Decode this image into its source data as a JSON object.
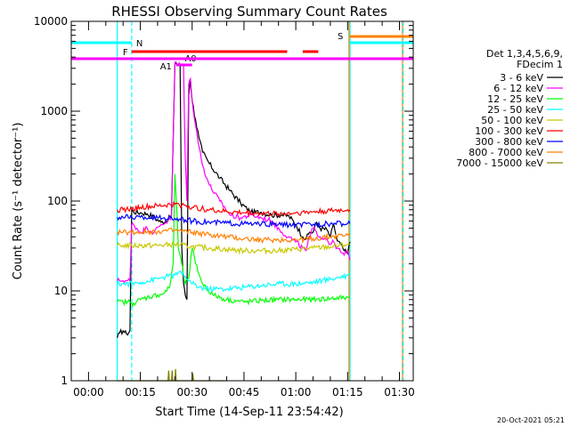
{
  "chart_data": {
    "type": "line",
    "title": "RHESSI Observing Summary Count Rates",
    "xlabel": "Start Time (14-Sep-11 23:54:42)",
    "ylabel": "Count Rate (s⁻¹ detector⁻¹)",
    "footer": "20-Oct-2021 05:21",
    "x_unit": "minutes after start",
    "xlim": [
      -5,
      94
    ],
    "ylim": [
      1,
      10000
    ],
    "yscale": "log",
    "x_ticks": [
      {
        "t": 0,
        "label": "00:00"
      },
      {
        "t": 15,
        "label": "00:15"
      },
      {
        "t": 30,
        "label": "00:30"
      },
      {
        "t": 45,
        "label": "00:45"
      },
      {
        "t": 60,
        "label": "01:00"
      },
      {
        "t": 75,
        "label": "01:15"
      },
      {
        "t": 90,
        "label": "01:30"
      }
    ],
    "y_ticks": [
      {
        "v": 1,
        "label": "1"
      },
      {
        "v": 10,
        "label": "10"
      },
      {
        "v": 100,
        "label": "100"
      },
      {
        "v": 1000,
        "label": "1000"
      },
      {
        "v": 10000,
        "label": "10000"
      }
    ],
    "legend": {
      "title_lines": [
        "Det 1,3,4,5,6,9,",
        "FDecim 1"
      ],
      "position": "right"
    },
    "data_gaps": [
      [
        -5,
        8.3
      ],
      [
        75.7,
        94
      ]
    ],
    "series": [
      {
        "name": "3 - 6 keV",
        "color": "#000000",
        "x": [
          8.3,
          9,
          10,
          11,
          12,
          12.5,
          13,
          15,
          17,
          19,
          21,
          23,
          24,
          25,
          26,
          26.5,
          27,
          27.5,
          28,
          28.5,
          29,
          29.5,
          30,
          31,
          32,
          33,
          35,
          38,
          41,
          44,
          47,
          50,
          53,
          56,
          58,
          60,
          62,
          63,
          64,
          65,
          66,
          67,
          69,
          70,
          71,
          72,
          73,
          74,
          75,
          75.7
        ],
        "y": [
          3,
          3.4,
          3.6,
          3.3,
          3.6,
          80,
          76,
          74,
          72,
          66,
          58,
          62,
          70,
          3300,
          3300,
          3300,
          30,
          12,
          9,
          8,
          1500,
          2300,
          1300,
          800,
          500,
          350,
          260,
          180,
          130,
          95,
          75,
          75,
          70,
          70,
          68,
          55,
          40,
          38,
          45,
          45,
          58,
          50,
          48,
          40,
          55,
          36,
          33,
          28,
          26,
          35
        ]
      },
      {
        "name": "6 - 12 keV",
        "color": "#ff00ff",
        "x": [
          8.3,
          9,
          10,
          11,
          12,
          12.5,
          13,
          15,
          17,
          19,
          21,
          23,
          24,
          25,
          26,
          26.5,
          27,
          27.5,
          28,
          28.5,
          29,
          29.5,
          30,
          31,
          32,
          33,
          35,
          38,
          41,
          44,
          47,
          50,
          53,
          56,
          58,
          60,
          62,
          63,
          64,
          65,
          66,
          67,
          69,
          70,
          71,
          72,
          73,
          74,
          75,
          75.7
        ],
        "y": [
          13,
          13,
          13,
          13,
          13,
          55,
          55,
          45,
          50,
          45,
          55,
          60,
          65,
          3500,
          3300,
          3300,
          3300,
          3300,
          300,
          100,
          2000,
          2300,
          1300,
          700,
          400,
          250,
          150,
          100,
          70,
          65,
          70,
          65,
          60,
          45,
          40,
          35,
          30,
          28,
          40,
          50,
          45,
          40,
          38,
          33,
          35,
          30,
          27,
          25,
          28,
          22
        ]
      },
      {
        "name": "12 - 25 keV",
        "color": "#00ff00",
        "x": [
          8.3,
          10,
          12,
          12.5,
          13,
          15,
          17,
          20,
          22,
          23.5,
          24.5,
          25,
          25.5,
          26,
          26.5,
          27,
          27.5,
          28,
          29,
          30,
          31,
          33,
          36,
          40,
          45,
          50,
          55,
          60,
          65,
          70,
          75,
          75.7
        ],
        "y": [
          7.5,
          7.5,
          7.5,
          7.2,
          7.3,
          8,
          8.5,
          9,
          9.5,
          11,
          20,
          200,
          90,
          30,
          25,
          20,
          15,
          12,
          14,
          30,
          20,
          12,
          9,
          8,
          7.5,
          7.8,
          8,
          8,
          8,
          8.2,
          8.5,
          8.5
        ]
      },
      {
        "name": "25 - 50 keV",
        "color": "#00ffff",
        "x": [
          8.3,
          10,
          12.5,
          15,
          18,
          21,
          23,
          25,
          26,
          27,
          28,
          29,
          30,
          32,
          35,
          40,
          45,
          50,
          55,
          60,
          65,
          70,
          75,
          75.7
        ],
        "y": [
          12,
          12,
          12,
          12.5,
          13,
          14,
          14.5,
          15,
          16,
          15.5,
          14.5,
          13,
          12,
          11,
          10.5,
          10.5,
          11,
          11.5,
          12,
          12,
          12.5,
          13.5,
          15,
          15.5
        ]
      },
      {
        "name": "50 - 100 keV",
        "color": "#c8c800",
        "x": [
          8.3,
          10,
          12.5,
          15,
          20,
          25,
          30,
          35,
          40,
          45,
          50,
          55,
          60,
          65,
          70,
          75,
          75.7
        ],
        "y": [
          32,
          32,
          32,
          32,
          32,
          33,
          31,
          30,
          29,
          28,
          28,
          28,
          29,
          30,
          31,
          33,
          33
        ]
      },
      {
        "name": "100 - 300 keV",
        "color": "#ff0000",
        "x": [
          8.3,
          10,
          12.5,
          15,
          20,
          25,
          28,
          30,
          35,
          40,
          45,
          50,
          55,
          60,
          65,
          70,
          75,
          75.7
        ],
        "y": [
          80,
          80,
          82,
          85,
          88,
          92,
          90,
          85,
          80,
          76,
          74,
          73,
          72,
          74,
          76,
          78,
          80,
          80
        ]
      },
      {
        "name": "300 - 800 keV",
        "color": "#0000ff",
        "x": [
          8.3,
          10,
          12.5,
          15,
          20,
          25,
          28,
          30,
          35,
          40,
          45,
          50,
          55,
          60,
          65,
          70,
          75,
          75.7
        ],
        "y": [
          66,
          66,
          66,
          66,
          65,
          64,
          62,
          60,
          58,
          57,
          56,
          55,
          55,
          54,
          55,
          56,
          56,
          56
        ]
      },
      {
        "name": "800 - 7000 keV",
        "color": "#ff8000",
        "x": [
          8.3,
          10,
          12.5,
          15,
          20,
          25,
          30,
          35,
          40,
          45,
          50,
          55,
          60,
          65,
          70,
          75,
          75.7
        ],
        "y": [
          45,
          45,
          45,
          45,
          46,
          47,
          45,
          42,
          40,
          38,
          37,
          37,
          37,
          38,
          40,
          42,
          42
        ]
      },
      {
        "name": "7000 - 15000 keV",
        "color": "#808000",
        "x": [
          8.3,
          23,
          23.2,
          23.4,
          24,
          24.2,
          24.4,
          25,
          25.2,
          25.4,
          30,
          30.2,
          30.4,
          40
        ],
        "y": [
          1,
          1,
          1.3,
          1,
          1,
          1.3,
          1,
          1,
          1.35,
          1,
          1,
          1.2,
          1,
          1
        ]
      }
    ],
    "flag_bars": [
      {
        "label": "N",
        "color": "#00ffff",
        "segments": [
          [
            -5,
            12.5
          ],
          [
            75.7,
            94
          ]
        ]
      },
      {
        "label": "F",
        "color": "#ff0000",
        "segments": [
          [
            12.5,
            57.5
          ],
          [
            62,
            66.5
          ]
        ]
      },
      {
        "label": "S",
        "color": "#ff8000",
        "segments": [
          [
            75.7,
            94
          ]
        ]
      },
      {
        "label": "A0",
        "color": "#ff00ff",
        "segments": [
          [
            27.5,
            30
          ]
        ]
      },
      {
        "label": "A1",
        "color": "#ff00ff",
        "segments": [
          [
            25.5,
            27.5
          ]
        ]
      },
      {
        "label": "",
        "color": "#ff00ff",
        "segments": [
          [
            -5,
            94
          ]
        ]
      }
    ],
    "vertical_markers": [
      {
        "t": 8.3,
        "color": "#00ffff",
        "style": "solid"
      },
      {
        "t": 12.5,
        "color": "#00ffff",
        "style": "dashed"
      },
      {
        "t": 75.4,
        "color": "#ff8000",
        "style": "solid"
      },
      {
        "t": 75.7,
        "color": "#00ffff",
        "style": "solid"
      },
      {
        "t": 90.9,
        "color": "#ff8000",
        "style": "solid"
      },
      {
        "t": 91.1,
        "color": "#00ffff",
        "style": "dashed"
      }
    ]
  }
}
